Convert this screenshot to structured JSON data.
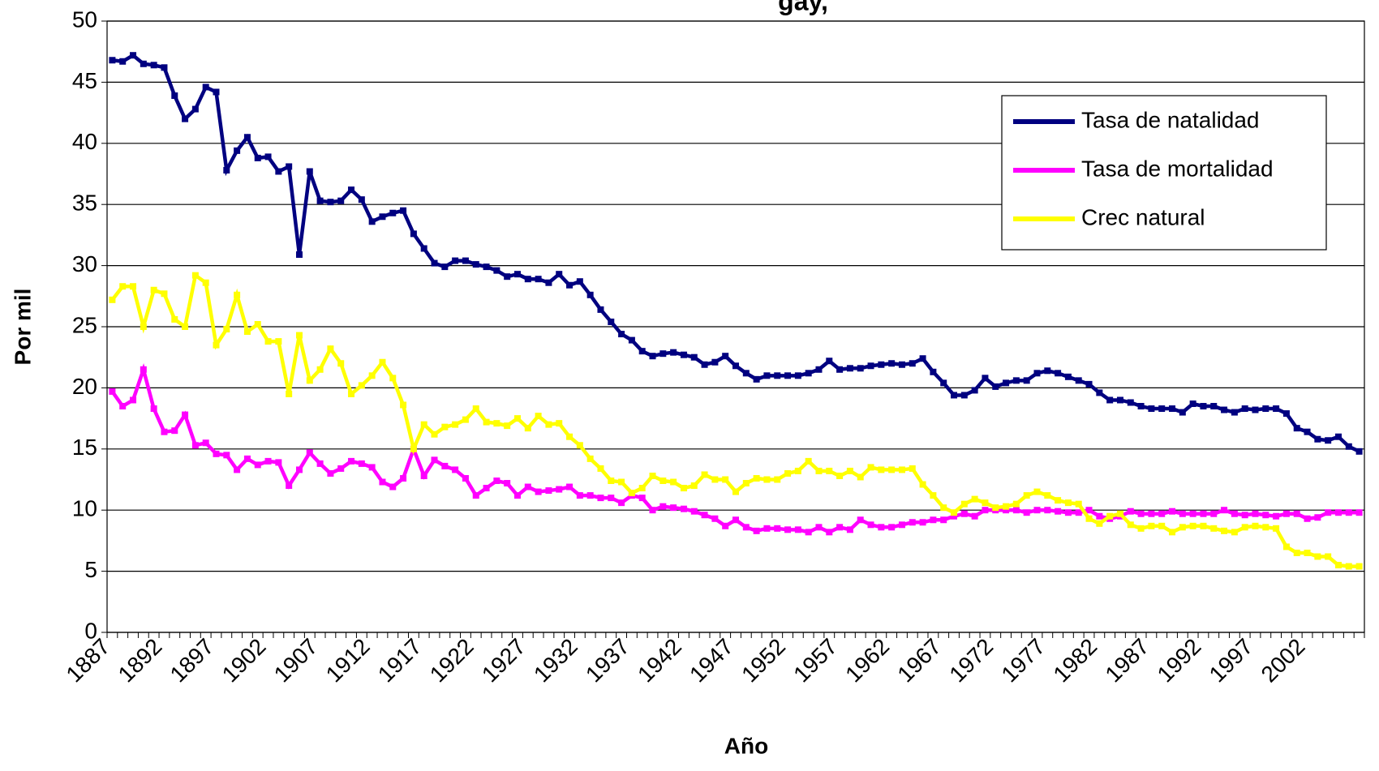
{
  "chart_data": {
    "type": "line",
    "title": "gay,",
    "x_label": "Año",
    "y_label": "Por mil",
    "categories": [
      "1887",
      null,
      null,
      null,
      null,
      "1892",
      null,
      null,
      null,
      null,
      "1897",
      null,
      null,
      null,
      null,
      "1902",
      null,
      null,
      null,
      null,
      "1907",
      null,
      null,
      null,
      null,
      "1912",
      null,
      null,
      null,
      null,
      "1917",
      null,
      null,
      null,
      null,
      "1922",
      null,
      null,
      null,
      null,
      "1927",
      null,
      null,
      null,
      null,
      "1932",
      null,
      null,
      null,
      null,
      "1937",
      null,
      null,
      null,
      null,
      "1942",
      null,
      null,
      null,
      null,
      "1947",
      null,
      null,
      null,
      null,
      "1952",
      null,
      null,
      null,
      null,
      "1957",
      null,
      null,
      null,
      null,
      "1962",
      null,
      null,
      null,
      null,
      "1967",
      null,
      null,
      null,
      null,
      "1972",
      null,
      null,
      null,
      null,
      "1977",
      null,
      null,
      null,
      null,
      "1982",
      null,
      null,
      null,
      null,
      "1987",
      null,
      null,
      null,
      null,
      "1992",
      null,
      null,
      null,
      null,
      "1997",
      null,
      null,
      null,
      null,
      "2002",
      null,
      null,
      null,
      null,
      null
    ],
    "series": [
      {
        "name": "Tasa de natalidad",
        "color": "#000080",
        "values": [
          46.8,
          46.7,
          47.2,
          46.5,
          46.4,
          46.2,
          43.9,
          42.0,
          42.8,
          44.6,
          44.2,
          37.8,
          39.4,
          40.5,
          38.8,
          38.9,
          37.7,
          38.1,
          30.9,
          37.7,
          35.3,
          35.2,
          35.3,
          36.2,
          35.4,
          33.6,
          34.0,
          34.3,
          34.5,
          32.6,
          31.4,
          30.2,
          29.9,
          30.4,
          30.4,
          30.1,
          29.9,
          29.6,
          29.1,
          29.3,
          28.9,
          28.9,
          28.6,
          29.3,
          28.4,
          28.7,
          27.6,
          26.4,
          25.4,
          24.4,
          23.9,
          23.0,
          22.6,
          22.8,
          22.9,
          22.7,
          22.5,
          21.9,
          22.1,
          22.6,
          21.8,
          21.2,
          20.7,
          21.0,
          21.0,
          21.0,
          21.0,
          21.2,
          21.5,
          22.2,
          21.5,
          21.6,
          21.6,
          21.8,
          21.9,
          22.0,
          21.9,
          22.0,
          22.4,
          21.3,
          20.4,
          19.4,
          19.4,
          19.8,
          20.8,
          20.1,
          20.4,
          20.6,
          20.6,
          21.2,
          21.4,
          21.2,
          20.9,
          20.6,
          20.3,
          19.6,
          19.0,
          19.0,
          18.8,
          18.5,
          18.3,
          18.3,
          18.3,
          18.0,
          18.7,
          18.5,
          18.5,
          18.2,
          18.0,
          18.3,
          18.2,
          18.3,
          18.3,
          17.9,
          16.7,
          16.4,
          15.8,
          15.7,
          16.0,
          15.2,
          14.8
        ]
      },
      {
        "name": "Tasa de mortalidad",
        "color": "#FF00FF",
        "values": [
          19.7,
          18.5,
          19.0,
          21.5,
          18.3,
          16.4,
          16.5,
          17.8,
          15.3,
          15.5,
          14.6,
          14.5,
          13.3,
          14.2,
          13.7,
          14.0,
          13.9,
          12.0,
          13.3,
          14.7,
          13.8,
          13.0,
          13.4,
          14.0,
          13.8,
          13.5,
          12.3,
          11.9,
          12.6,
          15.0,
          12.8,
          14.1,
          13.6,
          13.3,
          12.6,
          11.2,
          11.8,
          12.4,
          12.2,
          11.2,
          11.9,
          11.5,
          11.6,
          11.7,
          11.9,
          11.2,
          11.2,
          11.0,
          11.0,
          10.6,
          11.2,
          11.0,
          10.0,
          10.3,
          10.2,
          10.1,
          9.9,
          9.6,
          9.3,
          8.7,
          9.2,
          8.6,
          8.3,
          8.5,
          8.5,
          8.4,
          8.4,
          8.2,
          8.6,
          8.2,
          8.6,
          8.4,
          9.2,
          8.8,
          8.6,
          8.6,
          8.8,
          9.0,
          9.0,
          9.2,
          9.2,
          9.5,
          9.7,
          9.5,
          10.0,
          10.0,
          10.0,
          10.0,
          9.8,
          10.0,
          10.0,
          9.9,
          9.8,
          9.8,
          10.0,
          9.5,
          9.3,
          9.5,
          9.9,
          9.7,
          9.7,
          9.7,
          9.9,
          9.7,
          9.7,
          9.7,
          9.7,
          10.0,
          9.7,
          9.6,
          9.7,
          9.6,
          9.5,
          9.7,
          9.7,
          9.3,
          9.4,
          9.8,
          9.8,
          9.8,
          9.8
        ]
      },
      {
        "name": "Crec natural",
        "color": "#FFFF00",
        "values": [
          27.2,
          28.3,
          28.3,
          25.0,
          28.0,
          27.7,
          25.6,
          25.0,
          29.2,
          28.6,
          23.5,
          24.8,
          27.6,
          24.6,
          25.2,
          23.8,
          23.8,
          19.5,
          24.3,
          20.6,
          21.5,
          23.2,
          22.0,
          19.5,
          20.2,
          21.0,
          22.1,
          20.8,
          18.6,
          15.0,
          17.0,
          16.2,
          16.8,
          17.0,
          17.4,
          18.3,
          17.2,
          17.1,
          16.9,
          17.5,
          16.7,
          17.7,
          17.0,
          17.1,
          16.0,
          15.3,
          14.2,
          13.4,
          12.4,
          12.3,
          11.4,
          11.8,
          12.8,
          12.4,
          12.3,
          11.8,
          12.0,
          12.9,
          12.5,
          12.5,
          11.5,
          12.2,
          12.6,
          12.5,
          12.5,
          13.0,
          13.2,
          14.0,
          13.2,
          13.2,
          12.8,
          13.2,
          12.7,
          13.5,
          13.3,
          13.3,
          13.3,
          13.4,
          12.1,
          11.2,
          10.2,
          9.8,
          10.5,
          10.9,
          10.6,
          10.2,
          10.3,
          10.5,
          11.2,
          11.5,
          11.2,
          10.8,
          10.6,
          10.5,
          9.3,
          8.9,
          9.5,
          9.7,
          8.8,
          8.5,
          8.7,
          8.7,
          8.2,
          8.6,
          8.7,
          8.7,
          8.5,
          8.3,
          8.2,
          8.6,
          8.7,
          8.6,
          8.5,
          7.0,
          6.5,
          6.5,
          6.2,
          6.2,
          5.5,
          5.4,
          5.4
        ]
      }
    ],
    "ylim": [
      0,
      50
    ],
    "yticks": [
      0,
      5,
      10,
      15,
      20,
      25,
      30,
      35,
      40,
      45,
      50
    ],
    "grid": true,
    "legend": "upper right"
  }
}
